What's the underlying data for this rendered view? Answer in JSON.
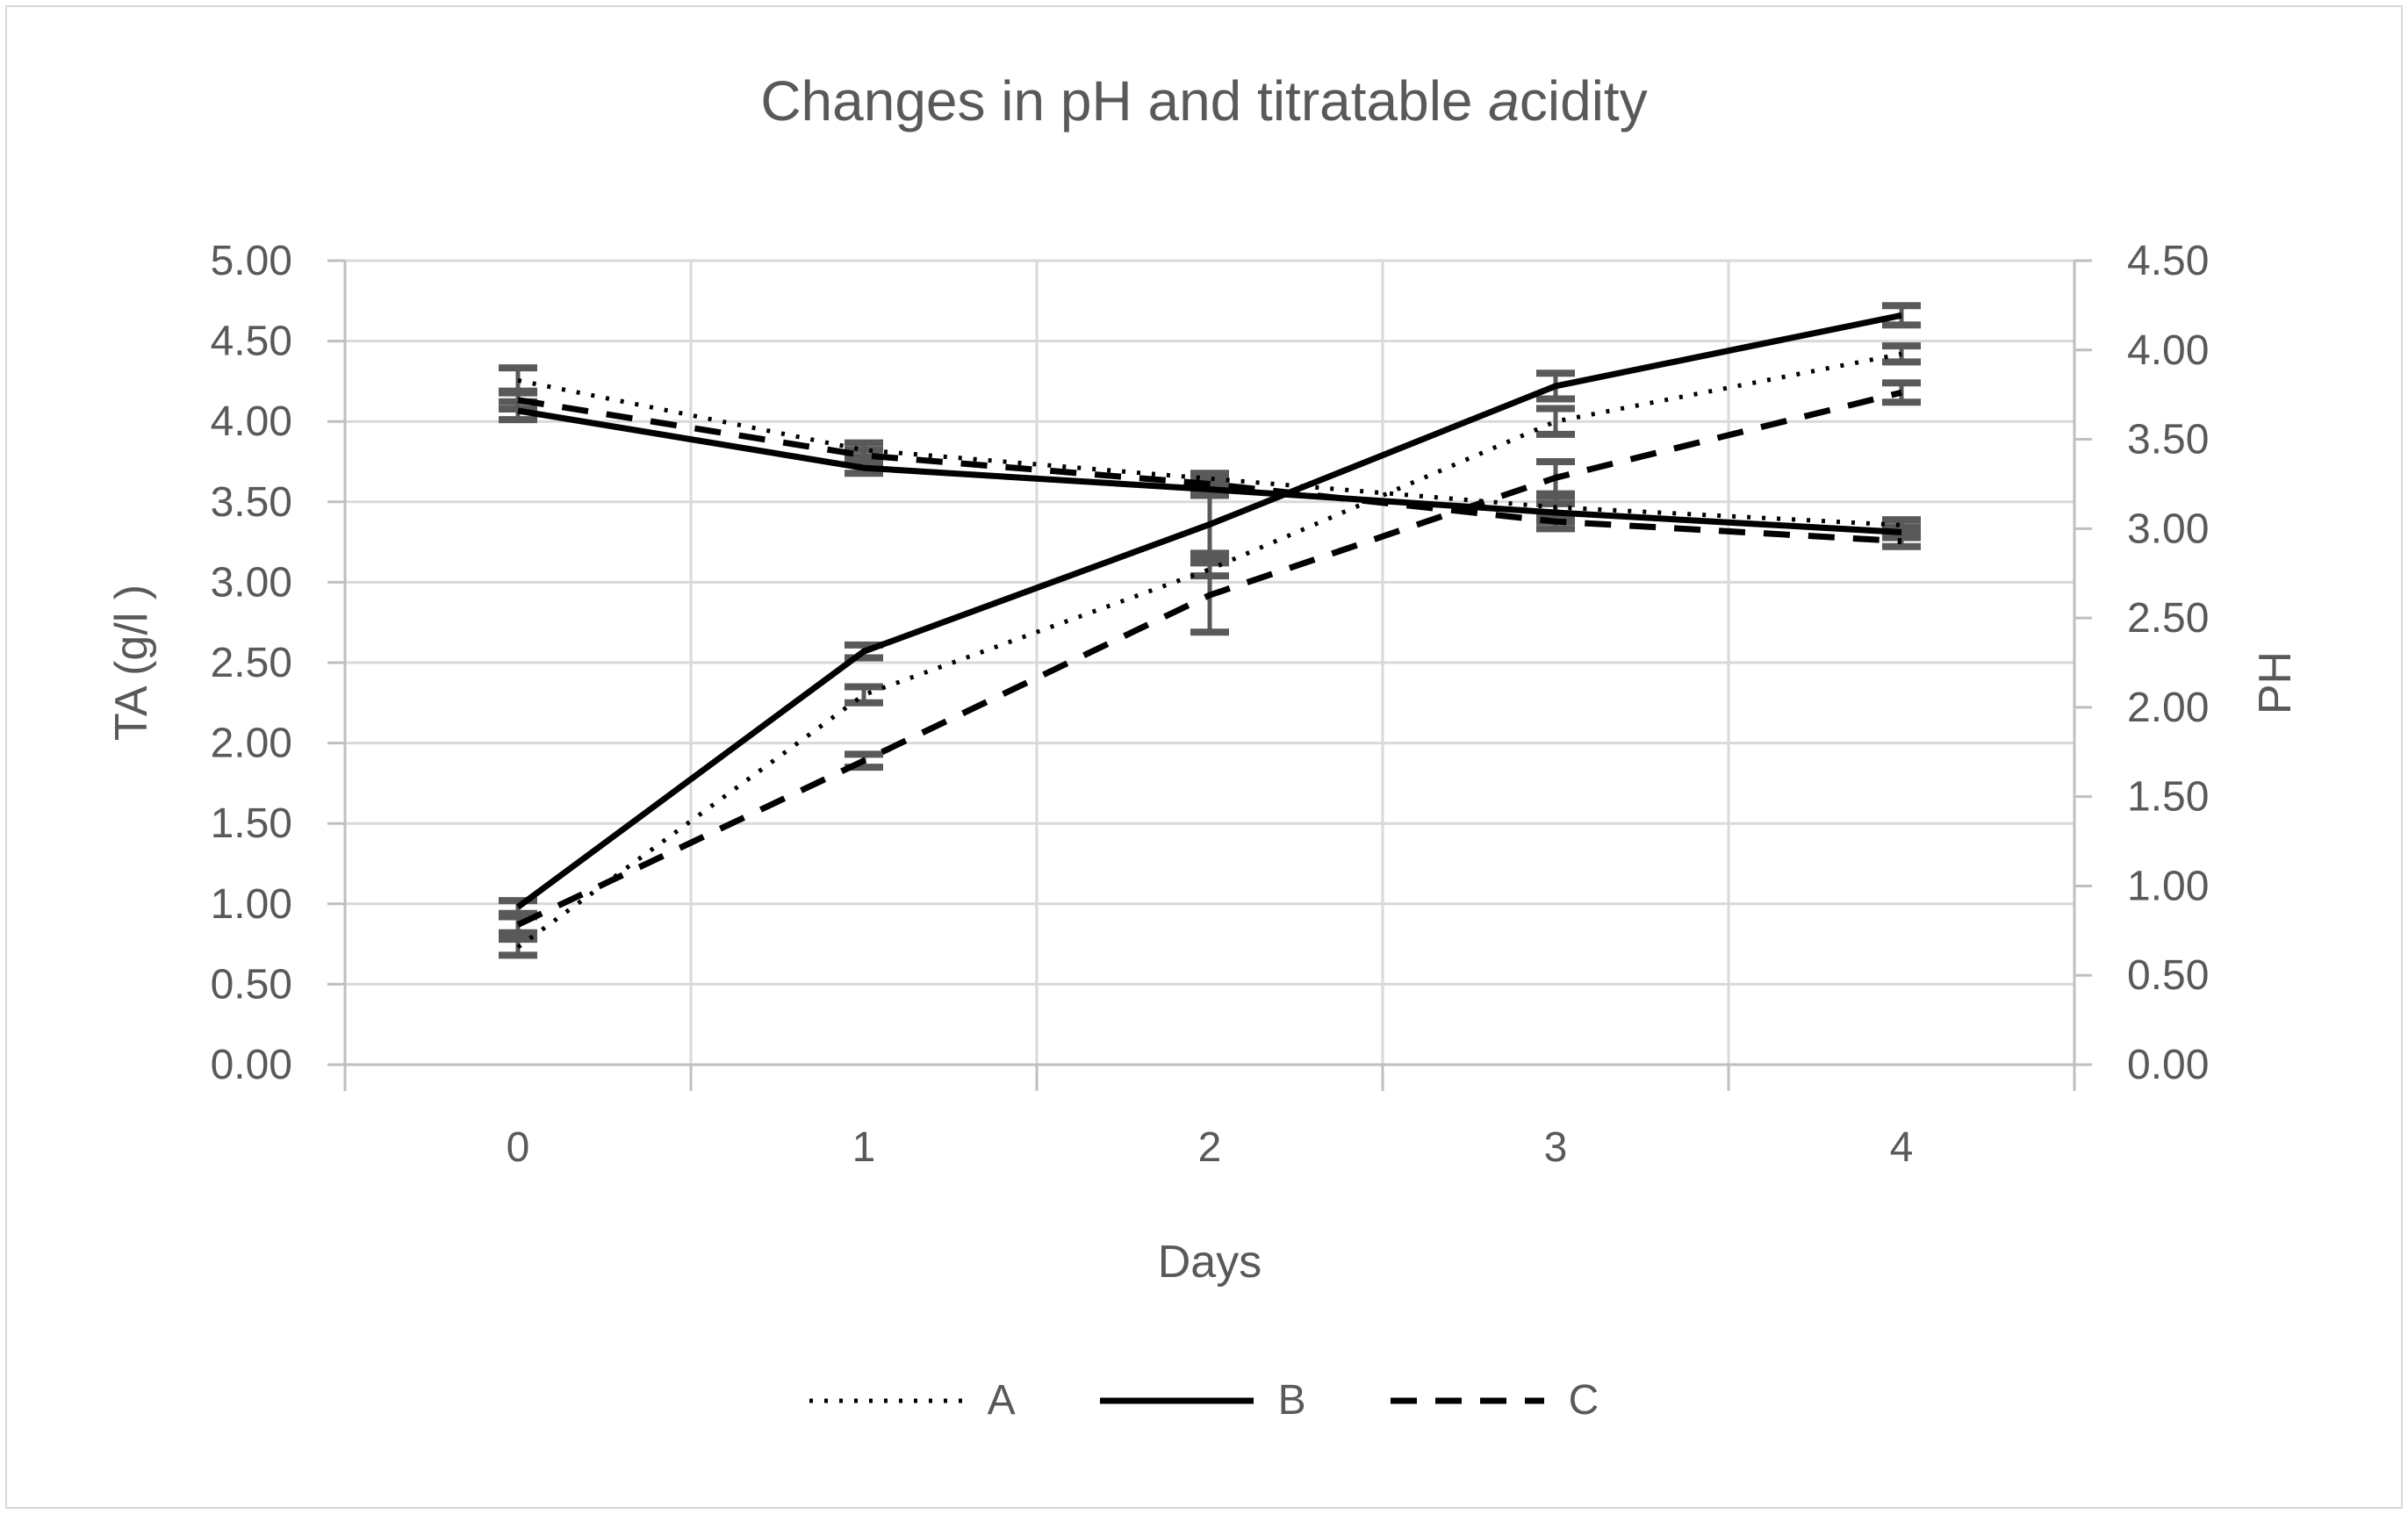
{
  "chart_data": {
    "type": "line",
    "title": "Changes in pH and titratable acidity",
    "title_parts": {
      "prefix": "Changes in pH and titratable ",
      "italic": "a",
      "suffix": "cidity"
    },
    "xlabel": "Days",
    "x": [
      0,
      1,
      2,
      3,
      4
    ],
    "x_tick_labels": [
      "0",
      "1",
      "2",
      "3",
      "4"
    ],
    "left_axis": {
      "label": "TA (g/l )",
      "min": 0,
      "max": 5,
      "step": 0.5,
      "ticks": [
        "5.00",
        "4.50",
        "4.00",
        "3.50",
        "3.00",
        "2.50",
        "2.00",
        "1.50",
        "1.00",
        "0.50",
        "0.00"
      ]
    },
    "right_axis": {
      "label": "PH",
      "min": 0,
      "max": 4.5,
      "step": 0.5,
      "ticks": [
        "4.50",
        "4.00",
        "3.50",
        "3.00",
        "2.50",
        "2.00",
        "1.50",
        "1.00",
        "0.50",
        "0.00"
      ]
    },
    "grid": true,
    "legend_position": "bottom",
    "legend": [
      {
        "label": "A",
        "style": "dotted"
      },
      {
        "label": "B",
        "style": "solid"
      },
      {
        "label": "C",
        "style": "dashed"
      }
    ],
    "series": [
      {
        "id": "TA-A",
        "group": "A",
        "measure": "TA",
        "axis": "left",
        "style": "dotted",
        "values": [
          0.73,
          2.3,
          3.08,
          4.0,
          4.42
        ],
        "errors": [
          0.05,
          0.05,
          0.04,
          0.08,
          0.05
        ]
      },
      {
        "id": "TA-B",
        "group": "B",
        "measure": "TA",
        "axis": "left",
        "style": "solid",
        "values": [
          0.98,
          2.57,
          3.36,
          4.22,
          4.66
        ],
        "errors": [
          0.04,
          0.04,
          0.18,
          0.08,
          0.06
        ]
      },
      {
        "id": "TA-C",
        "group": "C",
        "measure": "TA",
        "axis": "left",
        "style": "dashed",
        "values": [
          0.87,
          1.89,
          2.92,
          3.65,
          4.18
        ],
        "errors": [
          0.05,
          0.04,
          0.23,
          0.1,
          0.06
        ]
      },
      {
        "id": "pH-A",
        "group": "A",
        "measure": "pH",
        "axis": "right",
        "style": "dotted",
        "values": [
          3.83,
          3.44,
          3.28,
          3.12,
          3.02
        ],
        "errors": [
          0.07,
          0.04,
          0.03,
          0.06,
          0.03
        ]
      },
      {
        "id": "pH-B",
        "group": "B",
        "measure": "pH",
        "axis": "right",
        "style": "solid",
        "values": [
          3.66,
          3.34,
          3.22,
          3.09,
          2.98
        ],
        "errors": [
          0.05,
          0.03,
          0.03,
          0.05,
          0.03
        ]
      },
      {
        "id": "pH-C",
        "group": "C",
        "measure": "pH",
        "axis": "right",
        "style": "dashed",
        "values": [
          3.72,
          3.41,
          3.25,
          3.04,
          2.93
        ],
        "errors": [
          0.05,
          0.03,
          0.03,
          0.04,
          0.03
        ]
      }
    ],
    "colors": {
      "series_line": "#000000",
      "error_bar": "#595959",
      "gridline": "#d9d9d9",
      "axis_line": "#bfbfbf",
      "text": "#595959"
    }
  }
}
